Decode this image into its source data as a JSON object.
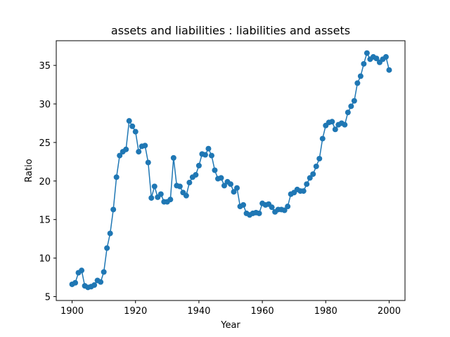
{
  "chart_data": {
    "type": "line",
    "title": "assets and liabilities : liabilities and assets",
    "xlabel": "Year",
    "ylabel": "Ratio",
    "xlim": [
      1895,
      2005
    ],
    "ylim": [
      4.5,
      38.2
    ],
    "xticks": [
      1900,
      1920,
      1940,
      1960,
      1980,
      2000
    ],
    "yticks": [
      5,
      10,
      15,
      20,
      25,
      30,
      35
    ],
    "grid": false,
    "legend": "none",
    "color": "#1f77b4",
    "series": [
      {
        "x": [
          1900,
          1901,
          1902,
          1903,
          1904,
          1905,
          1906,
          1907,
          1908,
          1909,
          1910,
          1911,
          1912,
          1913,
          1914,
          1915,
          1916,
          1917,
          1918,
          1919,
          1920,
          1921,
          1922,
          1923,
          1924,
          1925,
          1926,
          1927,
          1928,
          1929,
          1930,
          1931,
          1932,
          1933,
          1934,
          1935,
          1936,
          1937,
          1938,
          1939,
          1940,
          1941,
          1942,
          1943,
          1944,
          1945,
          1946,
          1947,
          1948,
          1949,
          1950,
          1951,
          1952,
          1953,
          1954,
          1955,
          1956,
          1957,
          1958,
          1959,
          1960,
          1961,
          1962,
          1963,
          1964,
          1965,
          1966,
          1967,
          1968,
          1969,
          1970,
          1971,
          1972,
          1973,
          1974,
          1975,
          1976,
          1977,
          1978,
          1979,
          1980,
          1981,
          1982,
          1983,
          1984,
          1985,
          1986,
          1987,
          1988,
          1989,
          1990,
          1991,
          1992,
          1993,
          1994,
          1995,
          1996,
          1997,
          1998,
          1999,
          2000
        ],
        "y": [
          6.6,
          6.8,
          8.1,
          8.4,
          6.4,
          6.2,
          6.3,
          6.5,
          7.1,
          6.9,
          8.2,
          11.3,
          13.2,
          16.3,
          20.5,
          23.3,
          23.8,
          24.1,
          27.8,
          27.1,
          26.4,
          23.8,
          24.5,
          24.6,
          22.4,
          17.8,
          19.3,
          17.9,
          18.3,
          17.3,
          17.3,
          17.6,
          23.0,
          19.4,
          19.3,
          18.5,
          18.1,
          19.8,
          20.5,
          20.8,
          22.0,
          23.5,
          23.4,
          24.2,
          23.3,
          21.4,
          20.3,
          20.4,
          19.4,
          19.9,
          19.6,
          18.6,
          19.1,
          16.7,
          16.9,
          15.8,
          15.6,
          15.8,
          15.9,
          15.8,
          17.1,
          16.9,
          17.0,
          16.6,
          16.0,
          16.3,
          16.3,
          16.2,
          16.7,
          18.3,
          18.5,
          18.9,
          18.7,
          18.7,
          19.6,
          20.4,
          20.9,
          21.9,
          22.9,
          25.5,
          27.2,
          27.6,
          27.7,
          26.7,
          27.3,
          27.5,
          27.3,
          28.9,
          29.7,
          30.4,
          32.7,
          33.6,
          35.2,
          36.6,
          35.8,
          36.1,
          35.9,
          35.4,
          35.8,
          36.1,
          34.4
        ]
      }
    ]
  }
}
